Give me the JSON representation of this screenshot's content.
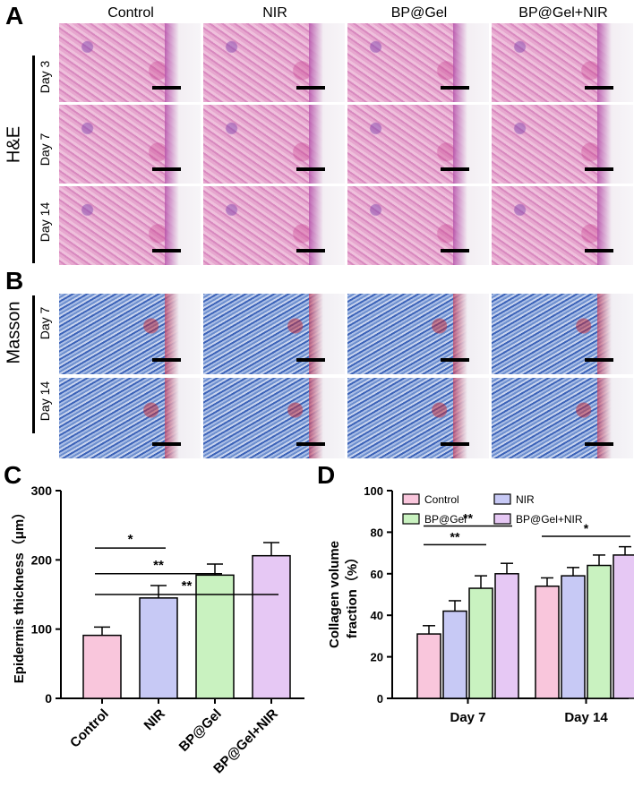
{
  "panels": {
    "a": "A",
    "b": "B",
    "c": "C",
    "d": "D"
  },
  "columns": [
    "Control",
    "NIR",
    "BP@Gel",
    "BP@Gel+NIR"
  ],
  "he": {
    "label": "H&E",
    "rows": [
      "Day 3",
      "Day 7",
      "Day 14"
    ]
  },
  "masson": {
    "label": "Masson",
    "rows": [
      "Day 7",
      "Day 14"
    ]
  },
  "colors": {
    "pink": "#f9c6dc",
    "blue": "#c7c9f5",
    "green": "#c9f2c0",
    "purple": "#e6c8f4"
  },
  "chart_data": [
    {
      "type": "bar",
      "ylabel": "Epidermis thickness（μm）",
      "categories": [
        "Control",
        "NIR",
        "BP@Gel",
        "BP@Gel+NIR"
      ],
      "values": [
        91,
        145,
        178,
        206
      ],
      "errors": [
        12,
        18,
        16,
        19
      ],
      "ylim": [
        0,
        300
      ],
      "yticks": [
        "0",
        "100",
        "200",
        "300"
      ],
      "significance": [
        {
          "from": 0,
          "to": 1,
          "label": "*"
        },
        {
          "from": 0,
          "to": 2,
          "label": "**"
        },
        {
          "from": 0,
          "to": 3,
          "label": "**"
        }
      ]
    },
    {
      "type": "bar",
      "ylabel_lines": [
        "Collagen volume",
        "fraction（%）"
      ],
      "categories": [
        "Day 7",
        "Day 14"
      ],
      "series": [
        {
          "name": "Control",
          "values": [
            31,
            54
          ],
          "errors": [
            4,
            4
          ]
        },
        {
          "name": "NIR",
          "values": [
            42,
            59
          ],
          "errors": [
            5,
            4
          ]
        },
        {
          "name": "BP@Gel",
          "values": [
            53,
            64
          ],
          "errors": [
            6,
            5
          ]
        },
        {
          "name": "BP@Gel+NIR",
          "values": [
            60,
            69
          ],
          "errors": [
            5,
            4
          ]
        }
      ],
      "ylim": [
        0,
        100
      ],
      "yticks": [
        "0",
        "20",
        "40",
        "60",
        "80",
        "100"
      ],
      "significance": [
        {
          "group": 0,
          "from": 0,
          "to": 2,
          "label": "**"
        },
        {
          "group": 0,
          "from": 0,
          "to": 3,
          "label": "**"
        },
        {
          "group": 1,
          "from": 0,
          "to": 3,
          "label": "*"
        }
      ]
    }
  ]
}
